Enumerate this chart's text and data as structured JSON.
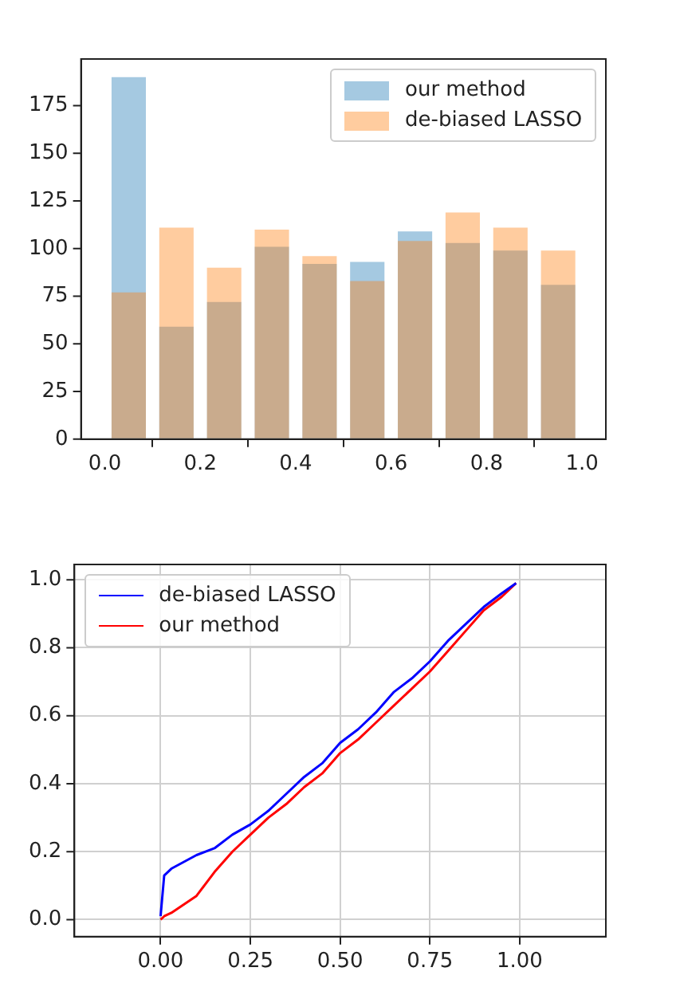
{
  "chart_data": [
    {
      "type": "histogram",
      "bins": [
        0,
        0.1,
        0.2,
        0.3,
        0.4,
        0.5,
        0.6,
        0.7,
        0.8,
        0.9,
        1.0
      ],
      "series": [
        {
          "name": "our method",
          "color": "#1f77b4",
          "values": [
            190,
            59,
            72,
            101,
            92,
            93,
            109,
            103,
            99,
            81
          ]
        },
        {
          "name": "de-biased LASSO",
          "color": "#ff7f0e",
          "values": [
            77,
            111,
            90,
            110,
            96,
            83,
            104,
            119,
            111,
            99
          ]
        }
      ],
      "xlim": [
        -0.05,
        1.05
      ],
      "xticks": [
        {
          "value": 0,
          "label": "0.0"
        },
        {
          "value": 0.2,
          "label": "0.2"
        },
        {
          "value": 0.4,
          "label": "0.4"
        },
        {
          "value": 0.6,
          "label": "0.6"
        },
        {
          "value": 0.8,
          "label": "0.8"
        },
        {
          "value": 1,
          "label": "1.0"
        }
      ],
      "ylim": [
        0,
        199.5
      ],
      "yticks": [
        0,
        25,
        50,
        75,
        100,
        125,
        150,
        175
      ],
      "grid": false,
      "legend": "top right"
    },
    {
      "type": "line",
      "x": [
        0,
        0.01,
        0.03,
        0.1,
        0.15,
        0.2,
        0.25,
        0.3,
        0.35,
        0.4,
        0.45,
        0.5,
        0.55,
        0.6,
        0.65,
        0.7,
        0.75,
        0.8,
        0.85,
        0.9,
        0.95,
        0.99
      ],
      "series": [
        {
          "name": "de-biased LASSO",
          "color": "#0000ff",
          "values": [
            0.01,
            0.13,
            0.15,
            0.19,
            0.21,
            0.25,
            0.28,
            0.32,
            0.37,
            0.42,
            0.46,
            0.52,
            0.56,
            0.61,
            0.67,
            0.71,
            0.76,
            0.82,
            0.87,
            0.92,
            0.96,
            0.99
          ]
        },
        {
          "name": "our method",
          "color": "#ff0000",
          "values": [
            0,
            0.01,
            0.02,
            0.07,
            0.14,
            0.2,
            0.25,
            0.3,
            0.34,
            0.39,
            0.43,
            0.49,
            0.53,
            0.58,
            0.63,
            0.68,
            0.73,
            0.79,
            0.85,
            0.91,
            0.95,
            0.99
          ]
        }
      ],
      "xlim": [
        -0.24,
        1.24
      ],
      "xticks": [
        {
          "value": 0,
          "label": "0.00"
        },
        {
          "value": 0.25,
          "label": "0.25"
        },
        {
          "value": 0.5,
          "label": "0.50"
        },
        {
          "value": 0.75,
          "label": "0.75"
        },
        {
          "value": 1,
          "label": "1.00"
        }
      ],
      "ylim": [
        -0.05,
        1.045
      ],
      "yticks": [
        {
          "value": 0,
          "label": "0.0"
        },
        {
          "value": 0.2,
          "label": "0.2"
        },
        {
          "value": 0.4,
          "label": "0.4"
        },
        {
          "value": 0.6,
          "label": "0.6"
        },
        {
          "value": 0.8,
          "label": "0.8"
        },
        {
          "value": 1,
          "label": "1.0"
        }
      ],
      "grid": true,
      "legend": "top left",
      "marker": "none",
      "line_style": "solid"
    }
  ]
}
